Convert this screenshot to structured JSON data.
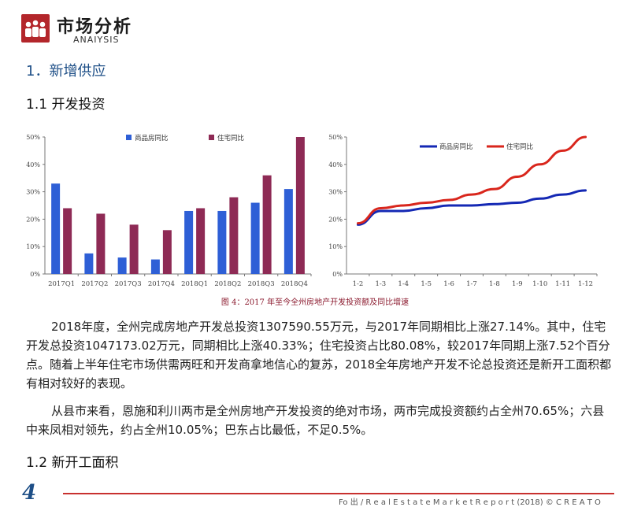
{
  "header": {
    "title": "市场分析",
    "subtitle": "ANAIYSIS"
  },
  "section_title": "1．新增供应",
  "subsection_1": "1.1 开发投资",
  "subsection_2": "1.2 新开工面积",
  "figure_caption": "图 4：2017 年至今全州房地产开发投资额及同比增速",
  "paragraphs": [
    "2018年度，全州完成房地产开发总投资1307590.55万元，与2017年同期相比上涨27.14%。其中，住宅开发总投资1047173.02万元，同期相比上涨40.33%；住宅投资占比80.08%，较2017年同期上涨7.52个百分点。随着上半年住宅市场供需两旺和开发商拿地信心的复苏，2018全年房地产开发不论总投资还是新开工面积都有相对较好的表现。",
    "从县市来看，恩施和利川两市是全州房地产开发投资的绝对市场，两市完成投资额约占全州70.65%；六县中来凤相对领先，约占全州10.05%；巴东占比最低，不足0.5%。"
  ],
  "footer": {
    "page_number": "4",
    "text": "Fo 出 / R e a l E s t a t e M a r k e t R e p o r t (2018) © C R E A T O"
  },
  "chart_data": [
    {
      "type": "bar",
      "title": "",
      "categories": [
        "2017Q1",
        "2017Q2",
        "2017Q3",
        "2017Q4",
        "2018Q1",
        "2018Q2",
        "2018Q3",
        "2018Q4"
      ],
      "series": [
        {
          "name": "商品房同比",
          "color": "#2e5fd6",
          "values": [
            33,
            7.5,
            6,
            5.3,
            23,
            23,
            26,
            31
          ]
        },
        {
          "name": "住宅同比",
          "color": "#8e2a55",
          "values": [
            24,
            22,
            18,
            16,
            24,
            28,
            36,
            50
          ]
        }
      ],
      "y_ticks": [
        "0%",
        "10%",
        "20%",
        "30%",
        "40%",
        "50%"
      ],
      "ylim": [
        0,
        50
      ],
      "legend": "top",
      "grid": false
    },
    {
      "type": "line",
      "title": "",
      "categories": [
        "1-2",
        "1-3",
        "1-4",
        "1-5",
        "1-6",
        "1-7",
        "1-8",
        "1-9",
        "1-10",
        "1-11",
        "1-12"
      ],
      "series": [
        {
          "name": "商品房同比",
          "color": "#1428b4",
          "values": [
            18,
            23,
            23,
            24,
            25,
            25,
            25.5,
            26,
            27.5,
            29,
            30.5
          ]
        },
        {
          "name": "住宅同比",
          "color": "#d9261c",
          "values": [
            18.5,
            24,
            25,
            26,
            27,
            29,
            31,
            35.5,
            40,
            45,
            50
          ]
        }
      ],
      "y_ticks": [
        "0%",
        "10%",
        "20%",
        "30%",
        "40%",
        "50%"
      ],
      "ylim": [
        0,
        50
      ],
      "legend": "top",
      "grid": false
    }
  ]
}
